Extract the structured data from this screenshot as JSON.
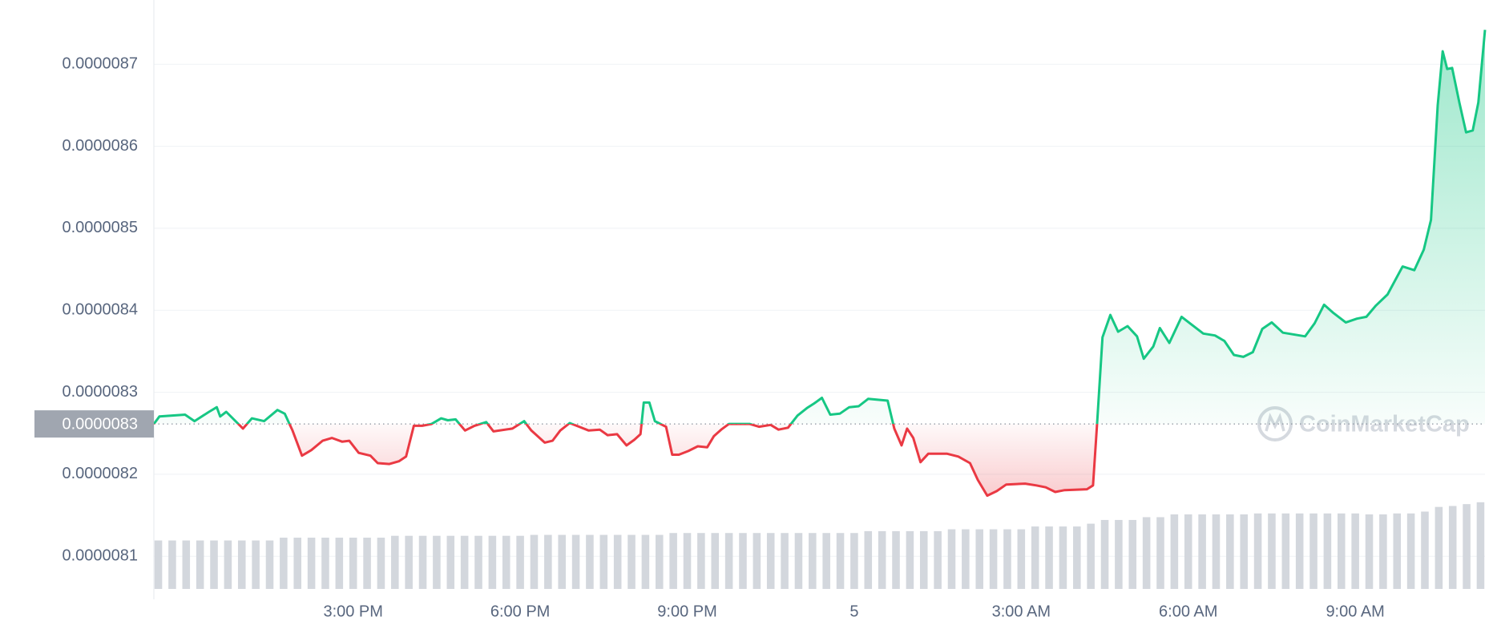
{
  "chart_data": {
    "type": "line",
    "watermark": "CoinMarketCap",
    "x": [
      -0.58,
      -0.48,
      -0.02,
      0.15,
      0.41,
      0.55,
      0.61,
      0.72,
      1.02,
      1.18,
      1.4,
      1.64,
      1.77,
      1.91,
      2.08,
      2.25,
      2.45,
      2.62,
      2.8,
      2.93,
      3.1,
      3.31,
      3.44,
      3.65,
      3.82,
      3.95,
      4.09,
      4.24,
      4.41,
      4.58,
      4.7,
      4.84,
      5.01,
      5.18,
      5.39,
      5.52,
      5.86,
      6.07,
      6.2,
      6.44,
      6.58,
      6.72,
      6.89,
      7.06,
      7.23,
      7.43,
      7.57,
      7.74,
      7.91,
      8.05,
      8.16,
      8.22,
      8.32,
      8.42,
      8.62,
      8.73,
      8.85,
      9.02,
      9.19,
      9.36,
      9.48,
      9.61,
      9.75,
      10.12,
      10.29,
      10.5,
      10.64,
      10.81,
      10.98,
      11.15,
      11.28,
      11.42,
      11.57,
      11.74,
      11.91,
      12.08,
      12.25,
      12.6,
      12.72,
      12.85,
      12.95,
      13.06,
      13.19,
      13.33,
      13.67,
      13.87,
      14.08,
      14.22,
      14.39,
      14.56,
      14.73,
      15.07,
      15.27,
      15.44,
      15.61,
      15.78,
      16.18,
      16.29,
      16.36,
      16.46,
      16.6,
      16.74,
      16.91,
      17.08,
      17.2,
      17.37,
      17.49,
      17.66,
      17.88,
      18.05,
      18.27,
      18.48,
      18.65,
      18.82,
      18.99,
      19.16,
      19.33,
      19.5,
      19.7,
      20.1,
      20.27,
      20.44,
      20.61,
      20.83,
      21.03,
      21.2,
      21.37,
      21.58,
      21.85,
      22.06,
      22.23,
      22.36,
      22.48,
      22.57,
      22.65,
      22.74,
      22.87,
      22.99,
      23.11,
      23.21,
      23.33
    ],
    "series": [
      {
        "up_color": "#16c784",
        "down_color": "#ea3943",
        "values": [
          8.2614e-06,
          8.2705e-06,
          8.2727e-06,
          8.2648e-06,
          8.2761e-06,
          8.2818e-06,
          8.2705e-06,
          8.2761e-06,
          8.2557e-06,
          8.2682e-06,
          8.2648e-06,
          8.2784e-06,
          8.2739e-06,
          8.2534e-06,
          8.2227e-06,
          8.2295e-06,
          8.2409e-06,
          8.2443e-06,
          8.2398e-06,
          8.2409e-06,
          8.2261e-06,
          8.2227e-06,
          8.2136e-06,
          8.2125e-06,
          8.2159e-06,
          8.2216e-06,
          8.2591e-06,
          8.2591e-06,
          8.2614e-06,
          8.2682e-06,
          8.2659e-06,
          8.267e-06,
          8.2534e-06,
          8.2591e-06,
          8.2636e-06,
          8.2523e-06,
          8.2557e-06,
          8.2648e-06,
          8.2534e-06,
          8.2386e-06,
          8.2409e-06,
          8.2534e-06,
          8.2625e-06,
          8.258e-06,
          8.2534e-06,
          8.2545e-06,
          8.2477e-06,
          8.2489e-06,
          8.2352e-06,
          8.242e-06,
          8.2489e-06,
          8.2875e-06,
          8.2875e-06,
          8.2648e-06,
          8.258e-06,
          8.2239e-06,
          8.2239e-06,
          8.2284e-06,
          8.2341e-06,
          8.233e-06,
          8.2466e-06,
          8.2545e-06,
          8.2614e-06,
          8.2614e-06,
          8.258e-06,
          8.2602e-06,
          8.2545e-06,
          8.2568e-06,
          8.2716e-06,
          8.2807e-06,
          8.2864e-06,
          8.2932e-06,
          8.2727e-06,
          8.2739e-06,
          8.2818e-06,
          8.283e-06,
          8.292e-06,
          8.2898e-06,
          8.2557e-06,
          8.2352e-06,
          8.2557e-06,
          8.2443e-06,
          8.2148e-06,
          8.225e-06,
          8.225e-06,
          8.2216e-06,
          8.2136e-06,
          8.1932e-06,
          8.1739e-06,
          8.1795e-06,
          8.1875e-06,
          8.1886e-06,
          8.1864e-06,
          8.1841e-06,
          8.1784e-06,
          8.1807e-06,
          8.1818e-06,
          8.1864e-06,
          8.2591e-06,
          8.367e-06,
          8.3943e-06,
          8.3739e-06,
          8.3807e-06,
          8.3682e-06,
          8.3409e-06,
          8.3557e-06,
          8.3784e-06,
          8.3602e-06,
          8.392e-06,
          8.383e-06,
          8.3716e-06,
          8.3693e-06,
          8.3625e-06,
          8.3455e-06,
          8.3432e-06,
          8.3489e-06,
          8.3773e-06,
          8.3852e-06,
          8.3727e-06,
          8.3682e-06,
          8.3841e-06,
          8.4068e-06,
          8.3966e-06,
          8.3852e-06,
          8.3898e-06,
          8.392e-06,
          8.4057e-06,
          8.4193e-06,
          8.4534e-06,
          8.4489e-06,
          8.4739e-06,
          8.5102e-06,
          8.65e-06,
          8.7159e-06,
          8.6943e-06,
          8.6955e-06,
          8.6534e-06,
          8.617e-06,
          8.6193e-06,
          8.6534e-06,
          8.742e-06
        ]
      }
    ],
    "baseline": {
      "value": 8.2614e-06,
      "label": "0.0000083"
    },
    "volume": {
      "color": "#d3d7dd",
      "x": [
        -0.5,
        -0.25,
        0,
        0.25,
        0.5,
        0.75,
        1,
        1.25,
        1.5,
        1.75,
        2,
        2.25,
        2.5,
        2.75,
        3,
        3.25,
        3.5,
        3.75,
        4,
        4.25,
        4.5,
        4.75,
        5,
        5.25,
        5.5,
        5.75,
        6,
        6.25,
        6.5,
        6.75,
        7,
        7.25,
        7.5,
        7.75,
        8,
        8.25,
        8.5,
        8.75,
        9,
        9.25,
        9.5,
        9.75,
        10,
        10.25,
        10.5,
        10.75,
        11,
        11.25,
        11.5,
        11.75,
        12,
        12.25,
        12.5,
        12.75,
        13,
        13.25,
        13.5,
        13.75,
        14,
        14.25,
        14.5,
        14.75,
        15,
        15.25,
        15.5,
        15.75,
        16,
        16.25,
        16.5,
        16.75,
        17,
        17.25,
        17.5,
        17.75,
        18,
        18.25,
        18.5,
        18.75,
        19,
        19.25,
        19.5,
        19.75,
        20,
        20.25,
        20.5,
        20.75,
        21,
        21.25,
        21.5,
        21.75,
        22,
        22.25,
        22.5,
        22.75,
        23,
        23.25
      ],
      "values": [
        52,
        52,
        52,
        52,
        52,
        52,
        52,
        52,
        52,
        55,
        55,
        55,
        55,
        55,
        55,
        55,
        55,
        57,
        57,
        57,
        57,
        57,
        57,
        57,
        57,
        57,
        57,
        58,
        58,
        58,
        58,
        58,
        58,
        58,
        58,
        58,
        58,
        60,
        60,
        60,
        60,
        60,
        60,
        60,
        60,
        60,
        60,
        60,
        60,
        60,
        60,
        62,
        62,
        62,
        62,
        62,
        62,
        64,
        64,
        64,
        64,
        64,
        64,
        67,
        67,
        67,
        67,
        70,
        74,
        74,
        74,
        77,
        77,
        80,
        80,
        80,
        80,
        80,
        80,
        81,
        81,
        81,
        81,
        81,
        81,
        81,
        81,
        80,
        80,
        81,
        81,
        83,
        88,
        89,
        91,
        93
      ]
    },
    "xlim": [
      -0.58,
      23.33
    ],
    "xticks": [
      {
        "value": 3,
        "label": "3:00 PM"
      },
      {
        "value": 6,
        "label": "6:00 PM"
      },
      {
        "value": 9,
        "label": "9:00 PM"
      },
      {
        "value": 12,
        "label": "5"
      },
      {
        "value": 15,
        "label": "3:00 AM"
      },
      {
        "value": 18,
        "label": "6:00 AM"
      },
      {
        "value": 21,
        "label": "9:00 AM"
      }
    ],
    "ylim": [
      8.0602e-06,
      8.7784e-06
    ],
    "yticks": [
      8.1e-06,
      8.2e-06,
      8.3e-06,
      8.4e-06,
      8.5e-06,
      8.6e-06,
      8.7e-06
    ],
    "grid": true
  }
}
